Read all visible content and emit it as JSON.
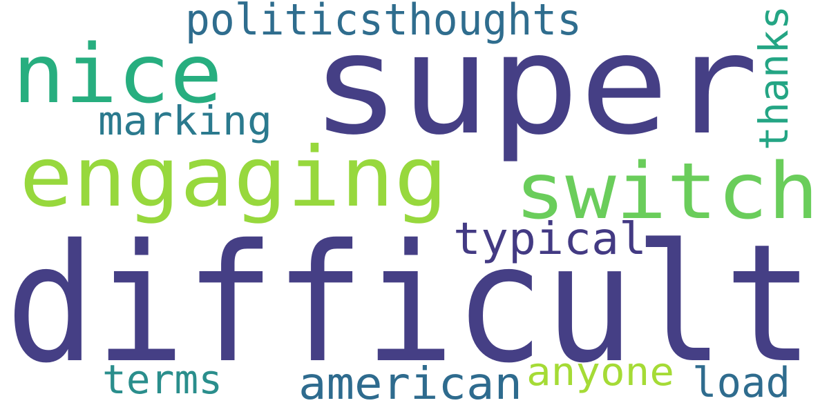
{
  "words": [
    {
      "text": "difficult",
      "color": "#453F85"
    },
    {
      "text": "super",
      "color": "#453F85"
    },
    {
      "text": "engaging",
      "color": "#97D83D"
    },
    {
      "text": "nice",
      "color": "#27AE7F"
    },
    {
      "text": "switch",
      "color": "#6ACD5B"
    },
    {
      "text": "politicsthoughts",
      "color": "#2F6D8E"
    },
    {
      "text": "marking",
      "color": "#2B7A8E"
    },
    {
      "text": "thanks",
      "color": "#24A584"
    },
    {
      "text": "typical",
      "color": "#433A83"
    },
    {
      "text": "american",
      "color": "#2E6B8E"
    },
    {
      "text": "terms",
      "color": "#2A8E8C"
    },
    {
      "text": "anyone",
      "color": "#A5DB36"
    },
    {
      "text": "load",
      "color": "#2F6C8E"
    }
  ]
}
